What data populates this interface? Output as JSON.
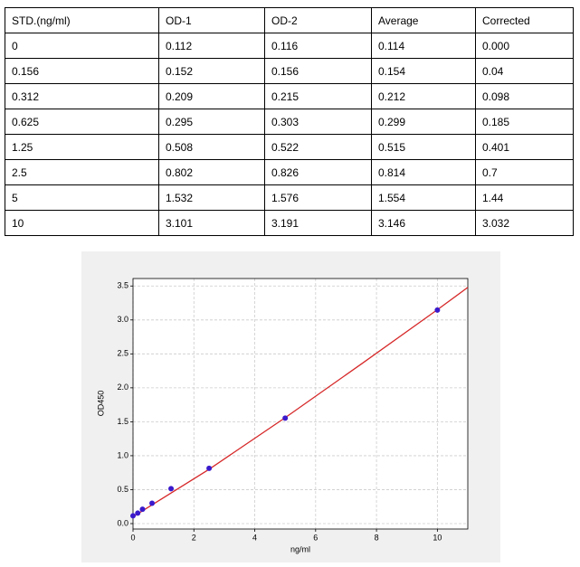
{
  "table": {
    "header": [
      "STD.(ng/ml)",
      "OD-1",
      "OD-2",
      "Average",
      "Corrected"
    ],
    "rows": [
      [
        "0",
        "0.112",
        "0.116",
        "0.114",
        "0.000"
      ],
      [
        "0.156",
        "0.152",
        "0.156",
        "0.154",
        "0.04"
      ],
      [
        "0.312",
        "0.209",
        "0.215",
        "0.212",
        "0.098"
      ],
      [
        "0.625",
        "0.295",
        "0.303",
        "0.299",
        "0.185"
      ],
      [
        "1.25",
        "0.508",
        "0.522",
        "0.515",
        "0.401"
      ],
      [
        "2.5",
        "0.802",
        "0.826",
        "0.814",
        "0.7"
      ],
      [
        "5",
        "1.532",
        "1.576",
        "1.554",
        "1.44"
      ],
      [
        "10",
        "3.101",
        "3.191",
        "3.146",
        "3.032"
      ]
    ]
  },
  "chart_data": {
    "type": "scatter",
    "x_label": "ng/ml",
    "y_label": "OD450",
    "xlim": [
      0,
      11
    ],
    "ylim": [
      -0.08,
      3.61
    ],
    "xticks": [
      0,
      2,
      4,
      6,
      8,
      10
    ],
    "yticks": [
      {
        "value": 0,
        "label": "0.0"
      },
      0.5,
      {
        "value": 1,
        "label": "1.0"
      },
      1.5,
      {
        "value": 2,
        "label": "2.0"
      },
      2.5,
      {
        "value": 3,
        "label": "3.0"
      },
      3.5
    ],
    "grid": true,
    "points": {
      "color": "#3a1acc",
      "x": [
        0,
        0.156,
        0.312,
        0.625,
        1.25,
        2.5,
        5,
        10
      ],
      "y": [
        0.114,
        0.154,
        0.212,
        0.299,
        0.515,
        0.814,
        1.554,
        3.146
      ]
    },
    "fit": {
      "color": "#d62728",
      "x": [
        0,
        2.5,
        5,
        7.5,
        10,
        11
      ],
      "y": [
        0.1,
        0.8,
        1.56,
        2.35,
        3.15,
        3.48
      ]
    }
  }
}
